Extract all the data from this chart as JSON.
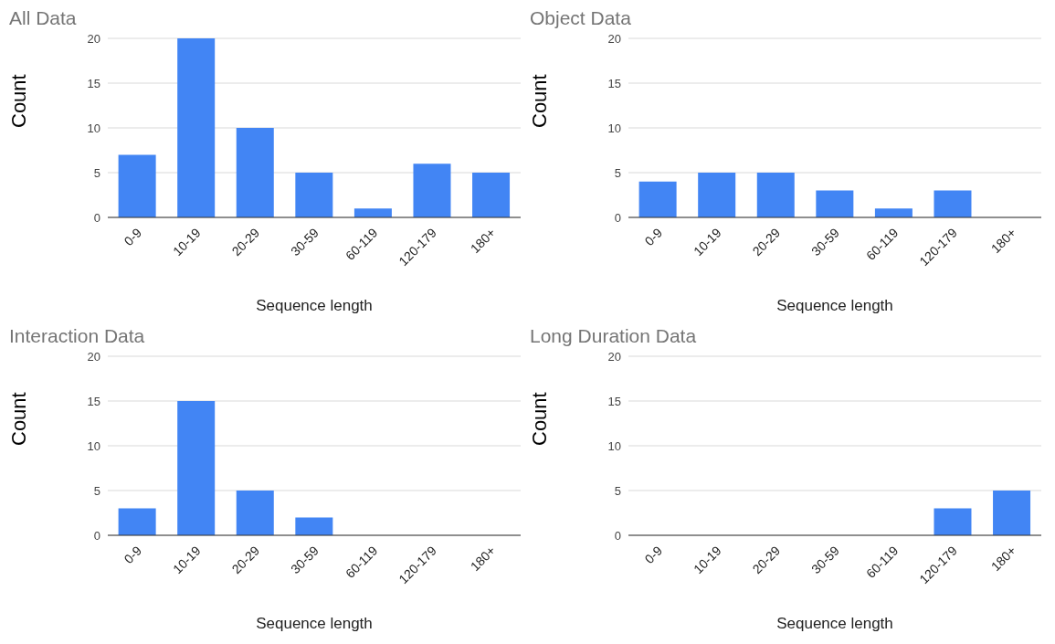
{
  "chart_data": [
    {
      "type": "bar",
      "title": "All Data",
      "categories": [
        "0-9",
        "10-19",
        "20-29",
        "30-59",
        "60-119",
        "120-179",
        "180+"
      ],
      "values": [
        7,
        20,
        10,
        5,
        1,
        6,
        5
      ],
      "color": "#4285f4",
      "ylim": [
        0,
        20
      ],
      "yticks": [
        0,
        5,
        10,
        15,
        20
      ],
      "grid": "y",
      "xlabel": "Sequence length",
      "ylabel": "Count"
    },
    {
      "type": "bar",
      "title": "Object Data",
      "categories": [
        "0-9",
        "10-19",
        "20-29",
        "30-59",
        "60-119",
        "120-179",
        "180+"
      ],
      "values": [
        4,
        5,
        5,
        3,
        1,
        3,
        0
      ],
      "color": "#4285f4",
      "ylim": [
        0,
        20
      ],
      "yticks": [
        0,
        5,
        10,
        15,
        20
      ],
      "grid": "y",
      "xlabel": "Sequence length",
      "ylabel": "Count"
    },
    {
      "type": "bar",
      "title": "Interaction Data",
      "categories": [
        "0-9",
        "10-19",
        "20-29",
        "30-59",
        "60-119",
        "120-179",
        "180+"
      ],
      "values": [
        3,
        15,
        5,
        2,
        0,
        0,
        0
      ],
      "color": "#4285f4",
      "ylim": [
        0,
        20
      ],
      "yticks": [
        0,
        5,
        10,
        15,
        20
      ],
      "grid": "y",
      "xlabel": "Sequence length",
      "ylabel": "Count"
    },
    {
      "type": "bar",
      "title": "Long Duration Data",
      "categories": [
        "0-9",
        "10-19",
        "20-29",
        "30-59",
        "60-119",
        "120-179",
        "180+"
      ],
      "values": [
        0,
        0,
        0,
        0,
        0,
        3,
        5
      ],
      "color": "#4285f4",
      "ylim": [
        0,
        20
      ],
      "yticks": [
        0,
        5,
        10,
        15,
        20
      ],
      "grid": "y",
      "xlabel": "Sequence length",
      "ylabel": "Count"
    }
  ]
}
